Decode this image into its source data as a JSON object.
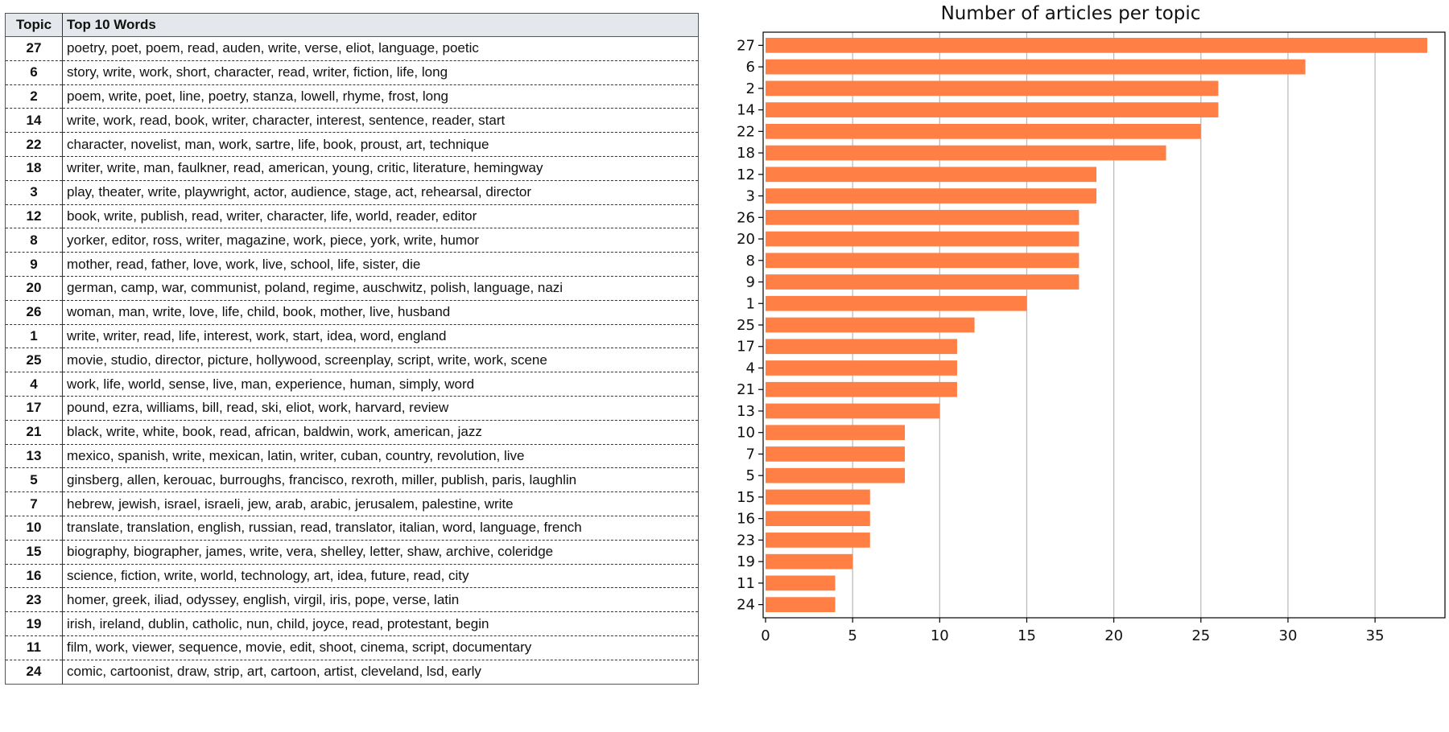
{
  "table": {
    "headers": {
      "topic": "Topic",
      "words": "Top 10 Words"
    },
    "rows": [
      {
        "topic": "27",
        "words": "poetry, poet, poem, read, auden, write, verse, eliot, language, poetic"
      },
      {
        "topic": "6",
        "words": "story, write, work, short, character, read, writer, fiction, life, long"
      },
      {
        "topic": "2",
        "words": "poem, write, poet, line, poetry, stanza, lowell, rhyme, frost, long"
      },
      {
        "topic": "14",
        "words": "write, work, read, book, writer, character, interest, sentence, reader, start"
      },
      {
        "topic": "22",
        "words": "character, novelist, man, work, sartre, life, book, proust, art, technique"
      },
      {
        "topic": "18",
        "words": "writer, write, man, faulkner, read, american, young, critic, literature, hemingway"
      },
      {
        "topic": "3",
        "words": "play, theater, write, playwright, actor, audience, stage, act, rehearsal, director"
      },
      {
        "topic": "12",
        "words": "book, write, publish, read, writer, character, life, world, reader, editor"
      },
      {
        "topic": "8",
        "words": "yorker, editor, ross, writer, magazine, work, piece, york, write, humor"
      },
      {
        "topic": "9",
        "words": "mother, read, father, love, work, live, school, life, sister, die"
      },
      {
        "topic": "20",
        "words": "german, camp, war, communist, poland, regime, auschwitz, polish, language, nazi"
      },
      {
        "topic": "26",
        "words": "woman, man, write, love, life, child, book, mother, live, husband"
      },
      {
        "topic": "1",
        "words": "write, writer, read, life, interest, work, start, idea, word, england"
      },
      {
        "topic": "25",
        "words": "movie, studio, director, picture, hollywood, screenplay, script, write, work, scene"
      },
      {
        "topic": "4",
        "words": "work, life, world, sense, live, man, experience, human, simply, word"
      },
      {
        "topic": "17",
        "words": "pound, ezra, williams, bill, read, ski, eliot, work, harvard, review"
      },
      {
        "topic": "21",
        "words": "black, write, white, book, read, african, baldwin, work, american, jazz"
      },
      {
        "topic": "13",
        "words": "mexico, spanish, write, mexican, latin, writer, cuban, country, revolution, live"
      },
      {
        "topic": "5",
        "words": "ginsberg, allen, kerouac, burroughs, francisco, rexroth, miller, publish, paris, laughlin"
      },
      {
        "topic": "7",
        "words": "hebrew, jewish, israel, israeli, jew, arab, arabic, jerusalem, palestine, write"
      },
      {
        "topic": "10",
        "words": "translate, translation, english, russian, read, translator, italian, word, language, french"
      },
      {
        "topic": "15",
        "words": "biography, biographer, james, write, vera, shelley, letter, shaw, archive, coleridge"
      },
      {
        "topic": "16",
        "words": "science, fiction, write, world, technology, art, idea, future, read, city"
      },
      {
        "topic": "23",
        "words": "homer, greek, iliad, odyssey, english, virgil, iris, pope, verse, latin"
      },
      {
        "topic": "19",
        "words": "irish, ireland, dublin, catholic, nun, child, joyce, read, protestant, begin"
      },
      {
        "topic": "11",
        "words": "film, work, viewer, sequence, movie, edit, shoot, cinema, script, documentary"
      },
      {
        "topic": "24",
        "words": "comic, cartoonist, draw, strip, art, cartoon, artist, cleveland, lsd, early"
      }
    ]
  },
  "chart_data": {
    "type": "bar",
    "orientation": "horizontal",
    "title": "Number of articles per topic",
    "xlabel": "",
    "ylabel": "",
    "categories": [
      "27",
      "6",
      "2",
      "14",
      "22",
      "18",
      "12",
      "3",
      "26",
      "20",
      "8",
      "9",
      "1",
      "25",
      "17",
      "4",
      "21",
      "13",
      "10",
      "7",
      "5",
      "15",
      "16",
      "23",
      "19",
      "11",
      "24"
    ],
    "values": [
      38,
      31,
      26,
      26,
      25,
      23,
      19,
      19,
      18,
      18,
      18,
      18,
      15,
      12,
      11,
      11,
      11,
      10,
      8,
      8,
      8,
      6,
      6,
      6,
      5,
      4,
      4
    ],
    "xlim": [
      0,
      40
    ],
    "xticks": [
      0,
      5,
      10,
      15,
      20,
      25,
      30,
      35
    ],
    "grid": "vertical",
    "bar_color": "#ff7f45"
  }
}
